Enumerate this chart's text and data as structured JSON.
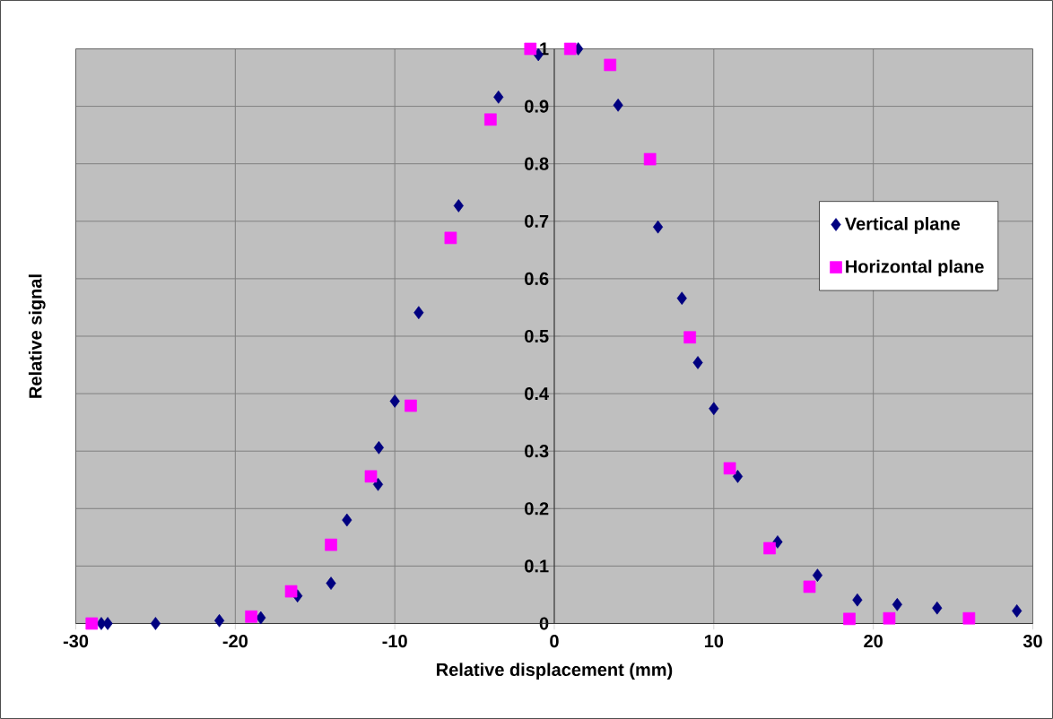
{
  "chart_data": {
    "type": "scatter",
    "xlabel": "Relative displacement (mm)",
    "ylabel": "Relative signal",
    "xlim": [
      -30,
      30
    ],
    "ylim": [
      0,
      1
    ],
    "xticks": [
      -30,
      -20,
      -10,
      0,
      10,
      20,
      30
    ],
    "yticks": [
      0,
      0.1,
      0.2,
      0.3,
      0.4,
      0.5,
      0.6,
      0.7,
      0.8,
      0.9,
      1
    ],
    "grid": true,
    "legend": "top right",
    "series": [
      {
        "name": "Vertical plane",
        "color": "#000080",
        "marker": "diamond",
        "x": [
          -28.4,
          -28.0,
          -25.0,
          -21.0,
          -18.4,
          -16.1,
          -14.0,
          -13.0,
          -11.05,
          -11.0,
          -10.0,
          -8.5,
          -6.0,
          -3.5,
          -1.0,
          1.5,
          4.0,
          6.5,
          8.0,
          9.0,
          10.0,
          11.5,
          14.0,
          16.5,
          19.0,
          21.5,
          24.0,
          29.0
        ],
        "values": [
          0,
          0,
          0,
          0.005,
          0.01,
          0.048,
          0.07,
          0.18,
          0.242,
          0.306,
          0.387,
          0.541,
          0.727,
          0.916,
          0.99,
          1.0,
          0.902,
          0.69,
          0.566,
          0.454,
          0.374,
          0.256,
          0.142,
          0.084,
          0.041,
          0.033,
          0.027,
          0.022
        ]
      },
      {
        "name": "Horizontal plane",
        "color": "#ff00ff",
        "marker": "square",
        "x": [
          -29.0,
          -19.0,
          -16.5,
          -14.0,
          -11.5,
          -9.0,
          -6.5,
          -4.0,
          -1.5,
          1.0,
          3.5,
          6.0,
          8.5,
          11.0,
          13.5,
          16.0,
          18.5,
          21.0,
          26.0
        ],
        "values": [
          0,
          0.012,
          0.056,
          0.137,
          0.256,
          0.379,
          0.671,
          0.877,
          1.0,
          1.0,
          0.972,
          0.808,
          0.498,
          0.27,
          0.131,
          0.064,
          0.008,
          0.009,
          0.009
        ]
      }
    ]
  }
}
